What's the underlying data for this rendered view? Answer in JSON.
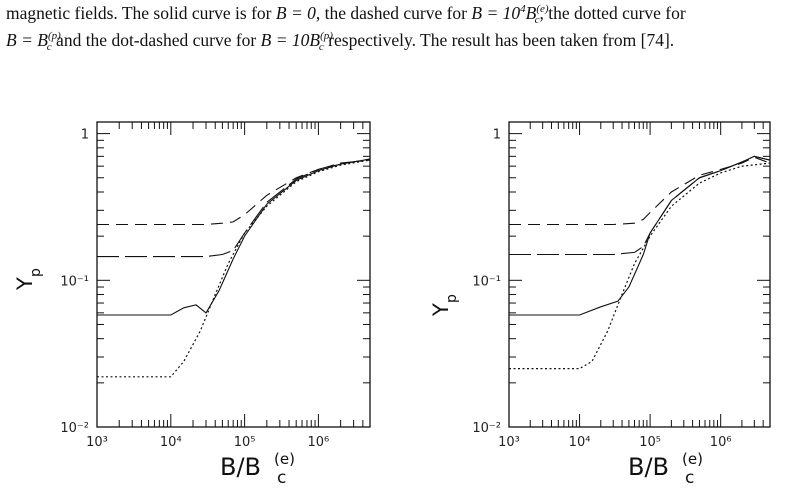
{
  "caption": {
    "line1_a": "magnetic fields. The solid curve is for ",
    "line1_b": ", the dashed curve for ",
    "line1_c": ", the dotted curve for",
    "line2_b": " and the dot-dashed curve for ",
    "line2_c": " respectively. The result has been taken from ",
    "cite": "[74]",
    "period": ".",
    "eq_zero": "B = 0",
    "eq_dashed": "B = 10",
    "eq_dashed_exp": "4",
    "eq_dotted": "B = B",
    "eq_dotdash": "B = 10B",
    "sym_e": "(e)",
    "sym_p": "(p)",
    "sym_c": "c"
  },
  "chart_data": [
    {
      "type": "line",
      "xlabel": "B/B",
      "xlabel_sup": "(e)",
      "xlabel_sub": "c",
      "ylabel": "Y",
      "ylabel_sub": "p",
      "xscale": "log",
      "yscale": "log",
      "xlim": [
        1000,
        5000000
      ],
      "ylim": [
        0.01,
        1.2
      ],
      "x_ticks": [
        "10³",
        "10⁴",
        "10⁵",
        "10⁶"
      ],
      "y_ticks": [
        "1",
        "10⁻¹",
        "10⁻²"
      ],
      "series": [
        {
          "style": "solid",
          "x": [
            1000,
            10000,
            15000,
            22000,
            30000,
            45000,
            70000,
            100000,
            200000,
            500000,
            1000000,
            2000000,
            5000000
          ],
          "y": [
            0.058,
            0.058,
            0.065,
            0.068,
            0.06,
            0.085,
            0.14,
            0.2,
            0.33,
            0.48,
            0.56,
            0.62,
            0.67
          ]
        },
        {
          "style": "dashed",
          "x": [
            1000,
            10000,
            30000,
            50000,
            70000,
            100000,
            200000,
            500000,
            1000000,
            2000000,
            5000000
          ],
          "y": [
            0.24,
            0.24,
            0.24,
            0.245,
            0.25,
            0.28,
            0.38,
            0.5,
            0.57,
            0.62,
            0.67
          ]
        },
        {
          "style": "dotted",
          "x": [
            1000,
            10000,
            15000,
            25000,
            40000,
            60000,
            100000,
            200000,
            500000,
            1000000,
            2000000,
            5000000
          ],
          "y": [
            0.022,
            0.022,
            0.028,
            0.045,
            0.08,
            0.13,
            0.21,
            0.32,
            0.47,
            0.55,
            0.61,
            0.66
          ]
        },
        {
          "style": "dot-dashed",
          "x": [
            1000,
            10000,
            30000,
            50000,
            70000,
            100000,
            200000,
            500000,
            1000000,
            2000000,
            5000000
          ],
          "y": [
            0.145,
            0.145,
            0.145,
            0.15,
            0.16,
            0.21,
            0.34,
            0.49,
            0.57,
            0.63,
            0.66
          ]
        }
      ]
    },
    {
      "type": "line",
      "xlabel": "B/B",
      "xlabel_sup": "(e)",
      "xlabel_sub": "c",
      "ylabel": "Y",
      "ylabel_sub": "p",
      "xscale": "log",
      "yscale": "log",
      "xlim": [
        1000,
        5000000
      ],
      "ylim": [
        0.01,
        1.2
      ],
      "x_ticks": [
        "10³",
        "10⁴",
        "10⁵",
        "10⁶"
      ],
      "y_ticks": [
        "1",
        "10⁻¹",
        "10⁻²"
      ],
      "series": [
        {
          "style": "solid",
          "x": [
            1000,
            10000,
            20000,
            35000,
            50000,
            80000,
            100000,
            200000,
            500000,
            1000000,
            2000000,
            3000000,
            5000000
          ],
          "y": [
            0.058,
            0.058,
            0.066,
            0.072,
            0.09,
            0.15,
            0.21,
            0.35,
            0.5,
            0.56,
            0.64,
            0.7,
            0.66
          ]
        },
        {
          "style": "dashed",
          "x": [
            1000,
            10000,
            30000,
            60000,
            80000,
            100000,
            200000,
            500000,
            1000000,
            2000000,
            3000000,
            5000000
          ],
          "y": [
            0.24,
            0.24,
            0.24,
            0.245,
            0.26,
            0.29,
            0.4,
            0.52,
            0.57,
            0.63,
            0.69,
            0.63
          ]
        },
        {
          "style": "dotted",
          "x": [
            1000,
            10000,
            15000,
            25000,
            40000,
            60000,
            100000,
            200000,
            500000,
            1000000,
            2000000,
            5000000
          ],
          "y": [
            0.025,
            0.025,
            0.028,
            0.045,
            0.08,
            0.13,
            0.2,
            0.32,
            0.46,
            0.54,
            0.6,
            0.63
          ]
        },
        {
          "style": "dot-dashed",
          "x": [
            1000,
            10000,
            30000,
            60000,
            80000,
            100000,
            200000,
            500000,
            1000000,
            2000000,
            3000000,
            5000000
          ],
          "y": [
            0.15,
            0.15,
            0.15,
            0.155,
            0.17,
            0.21,
            0.35,
            0.5,
            0.56,
            0.64,
            0.7,
            0.66
          ]
        }
      ]
    }
  ]
}
